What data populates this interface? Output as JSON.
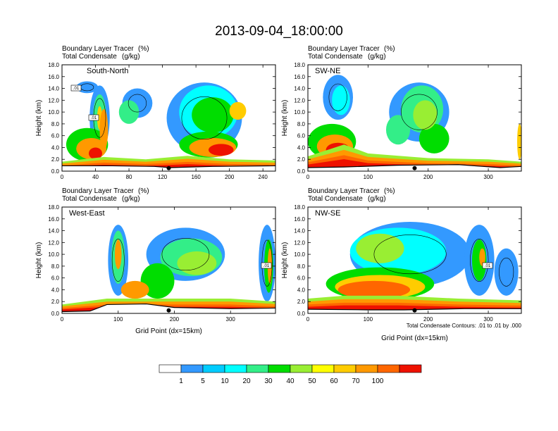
{
  "title": "2013-09-04_18:00:00",
  "colors": {
    "levels": [
      "#ffffff",
      "#3399ff",
      "#00ccff",
      "#00ffff",
      "#33ee88",
      "#00dd00",
      "#99ee33",
      "#ffff00",
      "#ffcc00",
      "#ff9900",
      "#ff6600",
      "#ee1100"
    ]
  },
  "colorbar": {
    "labels": [
      "1",
      "5",
      "10",
      "20",
      "30",
      "40",
      "50",
      "60",
      "70",
      "100"
    ]
  },
  "contour_note": "Total Condensate Contours: .01 to .01 by .000",
  "chart_data": [
    {
      "type": "heatmap",
      "panel": "south-north",
      "name": "South-North",
      "subtitle_left_1": "Boundary Layer Tracer",
      "subtitle_unit_1": "(%)",
      "subtitle_left_2": "Total Condensate",
      "subtitle_unit_2": "(g/kg)",
      "ylabel": "Height (km)",
      "xlabel": "",
      "yticks": [
        "0.0",
        "2.0",
        "4.0",
        "6.0",
        "8.0",
        "10.0",
        "12.0",
        "14.0",
        "16.0",
        "18.0"
      ],
      "xticks": [
        "0",
        "40",
        "80",
        "120",
        "160",
        "200",
        "240"
      ],
      "xlim": [
        0,
        255
      ],
      "ylim": [
        0,
        18
      ],
      "contour_labels": [
        ".01",
        ".01"
      ],
      "field": {
        "terrain": [
          [
            0,
            0.9
          ],
          [
            60,
            0.9
          ],
          [
            110,
            0.8
          ],
          [
            130,
            0.6
          ],
          [
            180,
            0.8
          ],
          [
            255,
            0.9
          ]
        ],
        "surface_top": [
          [
            0,
            1.6
          ],
          [
            50,
            2.4
          ],
          [
            100,
            2.0
          ],
          [
            150,
            2.6
          ],
          [
            200,
            2.0
          ],
          [
            255,
            1.8
          ]
        ],
        "blobs": [
          {
            "x": 30,
            "y": 14.2,
            "rx": 13,
            "ry": 1.0,
            "level": 1
          },
          {
            "x": 45,
            "y": 9.0,
            "rx": 12,
            "ry": 5.5,
            "level": 1
          },
          {
            "x": 45,
            "y": 9.0,
            "rx": 8,
            "ry": 4.0,
            "level": 4
          },
          {
            "x": 45,
            "y": 9.0,
            "rx": 3,
            "ry": 2.0,
            "level": 8
          },
          {
            "x": 90,
            "y": 11.5,
            "rx": 18,
            "ry": 2.5,
            "level": 1
          },
          {
            "x": 80,
            "y": 10.0,
            "rx": 12,
            "ry": 2.0,
            "level": 4
          },
          {
            "x": 170,
            "y": 9.0,
            "rx": 45,
            "ry": 6.0,
            "level": 1
          },
          {
            "x": 175,
            "y": 10.0,
            "rx": 35,
            "ry": 4.5,
            "level": 3
          },
          {
            "x": 180,
            "y": 9.5,
            "rx": 25,
            "ry": 3.0,
            "level": 5
          },
          {
            "x": 210,
            "y": 10.2,
            "rx": 10,
            "ry": 1.5,
            "level": 8
          },
          {
            "x": 175,
            "y": 4.5,
            "rx": 35,
            "ry": 2.2,
            "level": 5
          },
          {
            "x": 180,
            "y": 4.0,
            "rx": 28,
            "ry": 1.6,
            "level": 9
          },
          {
            "x": 190,
            "y": 3.6,
            "rx": 15,
            "ry": 1.0,
            "level": 11
          },
          {
            "x": 30,
            "y": 4.5,
            "rx": 25,
            "ry": 2.8,
            "level": 5
          },
          {
            "x": 35,
            "y": 3.8,
            "rx": 18,
            "ry": 1.8,
            "level": 9
          },
          {
            "x": 40,
            "y": 3.0,
            "rx": 8,
            "ry": 1.0,
            "level": 11
          },
          {
            "x": 50,
            "y": 7.0,
            "rx": 5,
            "ry": 3.5,
            "level": 9
          }
        ]
      }
    },
    {
      "type": "heatmap",
      "panel": "sw-ne",
      "name": "SW-NE",
      "subtitle_left_1": "Boundary Layer Tracer",
      "subtitle_unit_1": "(%)",
      "subtitle_left_2": "Total Condensate",
      "subtitle_unit_2": "(g/kg)",
      "ylabel": "Height (km)",
      "xlabel": "",
      "yticks": [
        "0.0",
        "2.0",
        "4.0",
        "6.0",
        "8.0",
        "10.0",
        "12.0",
        "14.0",
        "16.0",
        "18.0"
      ],
      "xticks": [
        "0",
        "100",
        "200",
        "300"
      ],
      "xlim": [
        0,
        355
      ],
      "ylim": [
        0,
        18
      ],
      "contour_labels": [],
      "field": {
        "terrain": [
          [
            0,
            0.6
          ],
          [
            60,
            0.7
          ],
          [
            150,
            1.0
          ],
          [
            250,
            1.1
          ],
          [
            320,
            0.6
          ],
          [
            355,
            0.8
          ]
        ],
        "surface_top": [
          [
            0,
            2.5
          ],
          [
            60,
            4.5
          ],
          [
            100,
            3.0
          ],
          [
            200,
            2.2
          ],
          [
            300,
            2.0
          ],
          [
            355,
            1.6
          ]
        ],
        "blobs": [
          {
            "x": 50,
            "y": 12.5,
            "rx": 25,
            "ry": 3.8,
            "level": 1
          },
          {
            "x": 55,
            "y": 12.0,
            "rx": 15,
            "ry": 2.5,
            "level": 3
          },
          {
            "x": 185,
            "y": 10.0,
            "rx": 50,
            "ry": 5.0,
            "level": 1
          },
          {
            "x": 190,
            "y": 10.5,
            "rx": 35,
            "ry": 4.0,
            "level": 4
          },
          {
            "x": 195,
            "y": 9.5,
            "rx": 20,
            "ry": 2.5,
            "level": 6
          },
          {
            "x": 150,
            "y": 7.0,
            "rx": 20,
            "ry": 2.5,
            "level": 4
          },
          {
            "x": 40,
            "y": 5.0,
            "rx": 40,
            "ry": 3.0,
            "level": 5
          },
          {
            "x": 45,
            "y": 4.2,
            "rx": 30,
            "ry": 2.0,
            "level": 9
          },
          {
            "x": 50,
            "y": 3.6,
            "rx": 20,
            "ry": 1.2,
            "level": 11
          },
          {
            "x": 210,
            "y": 5.5,
            "rx": 25,
            "ry": 2.5,
            "level": 5
          },
          {
            "x": 352,
            "y": 5.0,
            "rx": 4,
            "ry": 3.0,
            "level": 8
          }
        ]
      }
    },
    {
      "type": "heatmap",
      "panel": "west-east",
      "name": "West-East",
      "subtitle_left_1": "Boundary Layer Tracer",
      "subtitle_unit_1": "(%)",
      "subtitle_left_2": "Total Condensate",
      "subtitle_unit_2": "(g/kg)",
      "ylabel": "Height (km)",
      "xlabel": "Grid Point (dx=15km)",
      "yticks": [
        "0.0",
        "2.0",
        "4.0",
        "6.0",
        "8.0",
        "10.0",
        "12.0",
        "14.0",
        "16.0",
        "18.0"
      ],
      "xticks": [
        "0",
        "100",
        "200",
        "300"
      ],
      "xlim": [
        0,
        380
      ],
      "ylim": [
        0,
        18
      ],
      "contour_labels": [
        ".01"
      ],
      "field": {
        "terrain": [
          [
            0,
            0.3
          ],
          [
            50,
            0.4
          ],
          [
            80,
            1.5
          ],
          [
            150,
            1.6
          ],
          [
            200,
            1.0
          ],
          [
            300,
            0.8
          ],
          [
            380,
            0.9
          ]
        ],
        "surface_top": [
          [
            0,
            1.5
          ],
          [
            80,
            2.5
          ],
          [
            200,
            2.5
          ],
          [
            300,
            2.5
          ],
          [
            380,
            2.0
          ]
        ],
        "blobs": [
          {
            "x": 100,
            "y": 9.0,
            "rx": 18,
            "ry": 6.0,
            "level": 1
          },
          {
            "x": 100,
            "y": 9.5,
            "rx": 12,
            "ry": 4.5,
            "level": 4
          },
          {
            "x": 100,
            "y": 10.0,
            "rx": 6,
            "ry": 2.5,
            "level": 9
          },
          {
            "x": 220,
            "y": 10.0,
            "rx": 70,
            "ry": 4.5,
            "level": 1
          },
          {
            "x": 230,
            "y": 9.5,
            "rx": 55,
            "ry": 3.2,
            "level": 4
          },
          {
            "x": 240,
            "y": 8.5,
            "rx": 35,
            "ry": 2.0,
            "level": 6
          },
          {
            "x": 170,
            "y": 5.5,
            "rx": 30,
            "ry": 3.0,
            "level": 5
          },
          {
            "x": 365,
            "y": 8.5,
            "rx": 15,
            "ry": 6.5,
            "level": 1
          },
          {
            "x": 368,
            "y": 8.0,
            "rx": 8,
            "ry": 4.5,
            "level": 5
          },
          {
            "x": 370,
            "y": 8.0,
            "rx": 4,
            "ry": 3.0,
            "level": 9
          },
          {
            "x": 130,
            "y": 4.0,
            "rx": 25,
            "ry": 1.5,
            "level": 9
          }
        ]
      }
    },
    {
      "type": "heatmap",
      "panel": "nw-se",
      "name": "NW-SE",
      "subtitle_left_1": "Boundary Layer Tracer",
      "subtitle_unit_1": "(%)",
      "subtitle_left_2": "Total Condensate",
      "subtitle_unit_2": "(g/kg)",
      "ylabel": "Height (km)",
      "xlabel": "Grid Point (dx=15km)",
      "yticks": [
        "0.0",
        "2.0",
        "4.0",
        "6.0",
        "8.0",
        "10.0",
        "12.0",
        "14.0",
        "16.0",
        "18.0"
      ],
      "xticks": [
        "0",
        "100",
        "200",
        "300"
      ],
      "xlim": [
        0,
        355
      ],
      "ylim": [
        0,
        18
      ],
      "contour_labels": [
        ".01"
      ],
      "field": {
        "terrain": [
          [
            0,
            0.7
          ],
          [
            100,
            0.6
          ],
          [
            160,
            0.6
          ],
          [
            260,
            0.8
          ],
          [
            355,
            0.8
          ]
        ],
        "surface_top": [
          [
            0,
            2.5
          ],
          [
            60,
            3.0
          ],
          [
            150,
            3.0
          ],
          [
            250,
            2.5
          ],
          [
            355,
            2.2
          ]
        ],
        "blobs": [
          {
            "x": 170,
            "y": 10.0,
            "rx": 100,
            "ry": 5.5,
            "level": 1
          },
          {
            "x": 150,
            "y": 10.5,
            "rx": 80,
            "ry": 4.0,
            "level": 3
          },
          {
            "x": 120,
            "y": 11.0,
            "rx": 40,
            "ry": 2.5,
            "level": 6
          },
          {
            "x": 120,
            "y": 5.0,
            "rx": 90,
            "ry": 2.8,
            "level": 5
          },
          {
            "x": 120,
            "y": 4.5,
            "rx": 75,
            "ry": 2.0,
            "level": 8
          },
          {
            "x": 110,
            "y": 4.0,
            "rx": 60,
            "ry": 1.5,
            "level": 10
          },
          {
            "x": 285,
            "y": 9.0,
            "rx": 25,
            "ry": 6.0,
            "level": 1
          },
          {
            "x": 285,
            "y": 9.0,
            "rx": 12,
            "ry": 3.5,
            "level": 5
          },
          {
            "x": 290,
            "y": 9.5,
            "rx": 5,
            "ry": 1.5,
            "level": 9
          },
          {
            "x": 330,
            "y": 7.0,
            "rx": 20,
            "ry": 4.0,
            "level": 1
          }
        ]
      }
    }
  ]
}
